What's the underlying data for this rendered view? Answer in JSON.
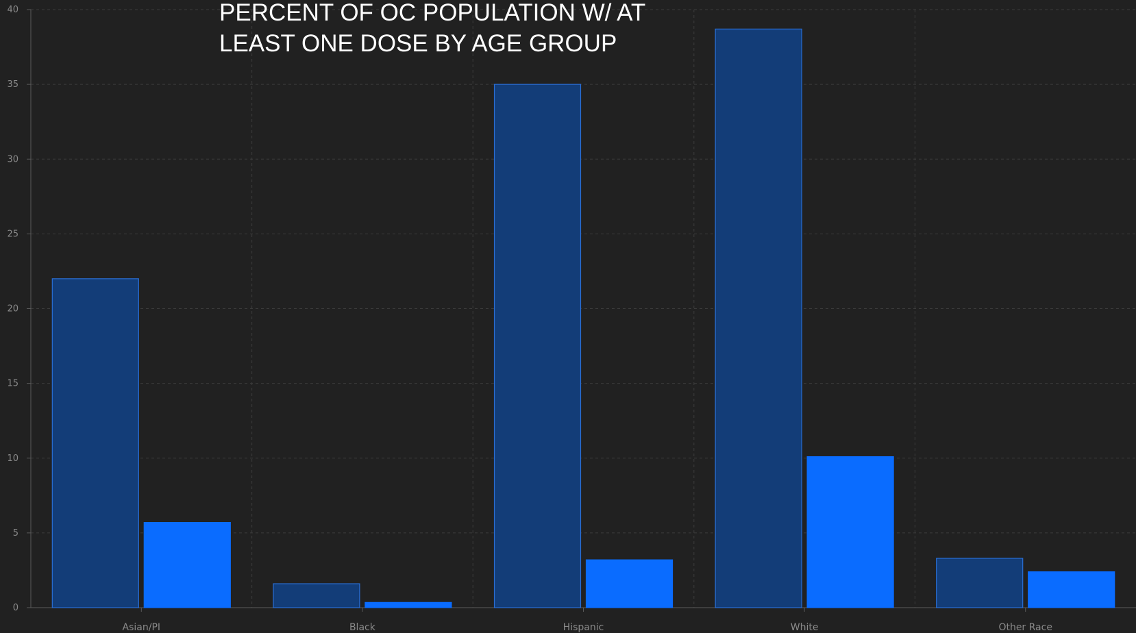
{
  "chart_data": {
    "type": "bar",
    "title_lines": [
      "PERCENT OF OC POPULATION W/ AT",
      "LEAST ONE DOSE BY AGE GROUP"
    ],
    "categories": [
      "Asian/PI",
      "Black",
      "Hispanic",
      "White",
      "Other Race"
    ],
    "series": [
      {
        "values": [
          22.0,
          1.6,
          35.0,
          38.7,
          3.3
        ],
        "color": "#133d78",
        "stroke": "#2a6fd6"
      },
      {
        "values": [
          5.7,
          0.35,
          3.2,
          10.1,
          2.4
        ],
        "color": "#0a6cff",
        "stroke": "#0a6cff"
      }
    ],
    "ylim": [
      0,
      40
    ],
    "yticks": [
      "0",
      "5",
      "10",
      "15",
      "20",
      "25",
      "30",
      "35",
      "40"
    ],
    "grid": true,
    "background": "#212121"
  }
}
